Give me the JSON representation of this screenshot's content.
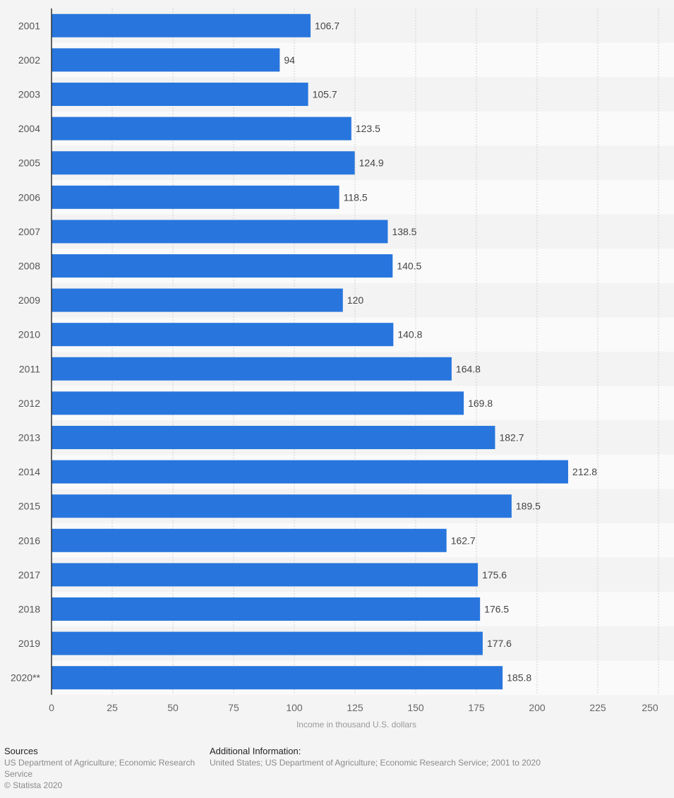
{
  "chart_data": {
    "type": "bar",
    "orientation": "horizontal",
    "title": "",
    "xlabel": "Income in thousand U.S. dollars",
    "ylabel": "",
    "xlim": [
      0,
      250
    ],
    "xticks": [
      0,
      25,
      50,
      75,
      100,
      125,
      150,
      175,
      200,
      225,
      250
    ],
    "grid": true,
    "bar_color": "#2876dd",
    "categories": [
      "2001",
      "2002",
      "2003",
      "2004",
      "2005",
      "2006",
      "2007",
      "2008",
      "2009",
      "2010",
      "2011",
      "2012",
      "2013",
      "2014",
      "2015",
      "2016",
      "2017",
      "2018",
      "2019",
      "2020**"
    ],
    "values": [
      106.7,
      94,
      105.7,
      123.5,
      124.9,
      118.5,
      138.5,
      140.5,
      120,
      140.8,
      164.8,
      169.8,
      182.7,
      212.8,
      189.5,
      162.7,
      175.6,
      176.5,
      177.6,
      185.8
    ],
    "value_labels": [
      "106.7",
      "94",
      "105.7",
      "123.5",
      "124.9",
      "118.5",
      "138.5",
      "140.5",
      "120",
      "140.8",
      "164.8",
      "169.8",
      "182.7",
      "212.8",
      "189.5",
      "162.7",
      "175.6",
      "176.5",
      "177.6",
      "185.8"
    ]
  },
  "footer": {
    "sources_heading": "Sources",
    "sources_text": "US Department of Agriculture; Economic Research Service",
    "copyright": "© Statista 2020",
    "additional_heading": "Additional Information:",
    "additional_text": "United States; US Department of Agriculture; Economic Research Service; 2001 to 2020"
  }
}
